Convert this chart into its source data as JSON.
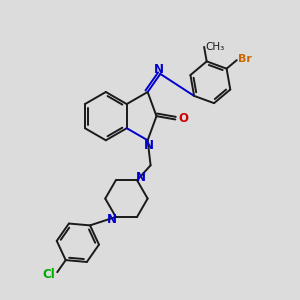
{
  "bg_color": "#dcdcdc",
  "bond_color": "#1a1a1a",
  "n_color": "#0000cc",
  "o_color": "#cc0000",
  "br_color": "#cc6600",
  "cl_color": "#00aa00",
  "bond_width": 1.4,
  "figsize": [
    3.0,
    3.0
  ],
  "dpi": 100,
  "xlim": [
    0,
    10
  ],
  "ylim": [
    0,
    10
  ]
}
